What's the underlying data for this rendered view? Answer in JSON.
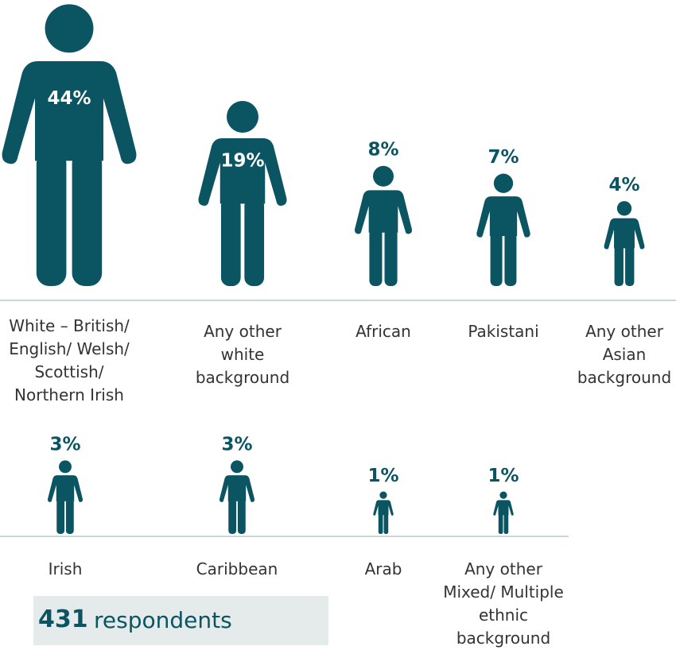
{
  "chart_data": {
    "type": "pictogram",
    "categories": [
      "White – British/ English/ Welsh/ Scottish/ Northern Irish",
      "Any other white background",
      "African",
      "Pakistani",
      "Any other Asian background",
      "Irish",
      "Caribbean",
      "Arab",
      "Any other Mixed/ Multiple ethnic background"
    ],
    "values": [
      44,
      19,
      8,
      7,
      4,
      3,
      3,
      1,
      1
    ],
    "value_labels": [
      "44%",
      "19%",
      "8%",
      "7%",
      "4%",
      "3%",
      "3%",
      "1%",
      "1%"
    ],
    "color": "#0b5563"
  },
  "respondents": {
    "count": 431,
    "text": "respondents"
  }
}
